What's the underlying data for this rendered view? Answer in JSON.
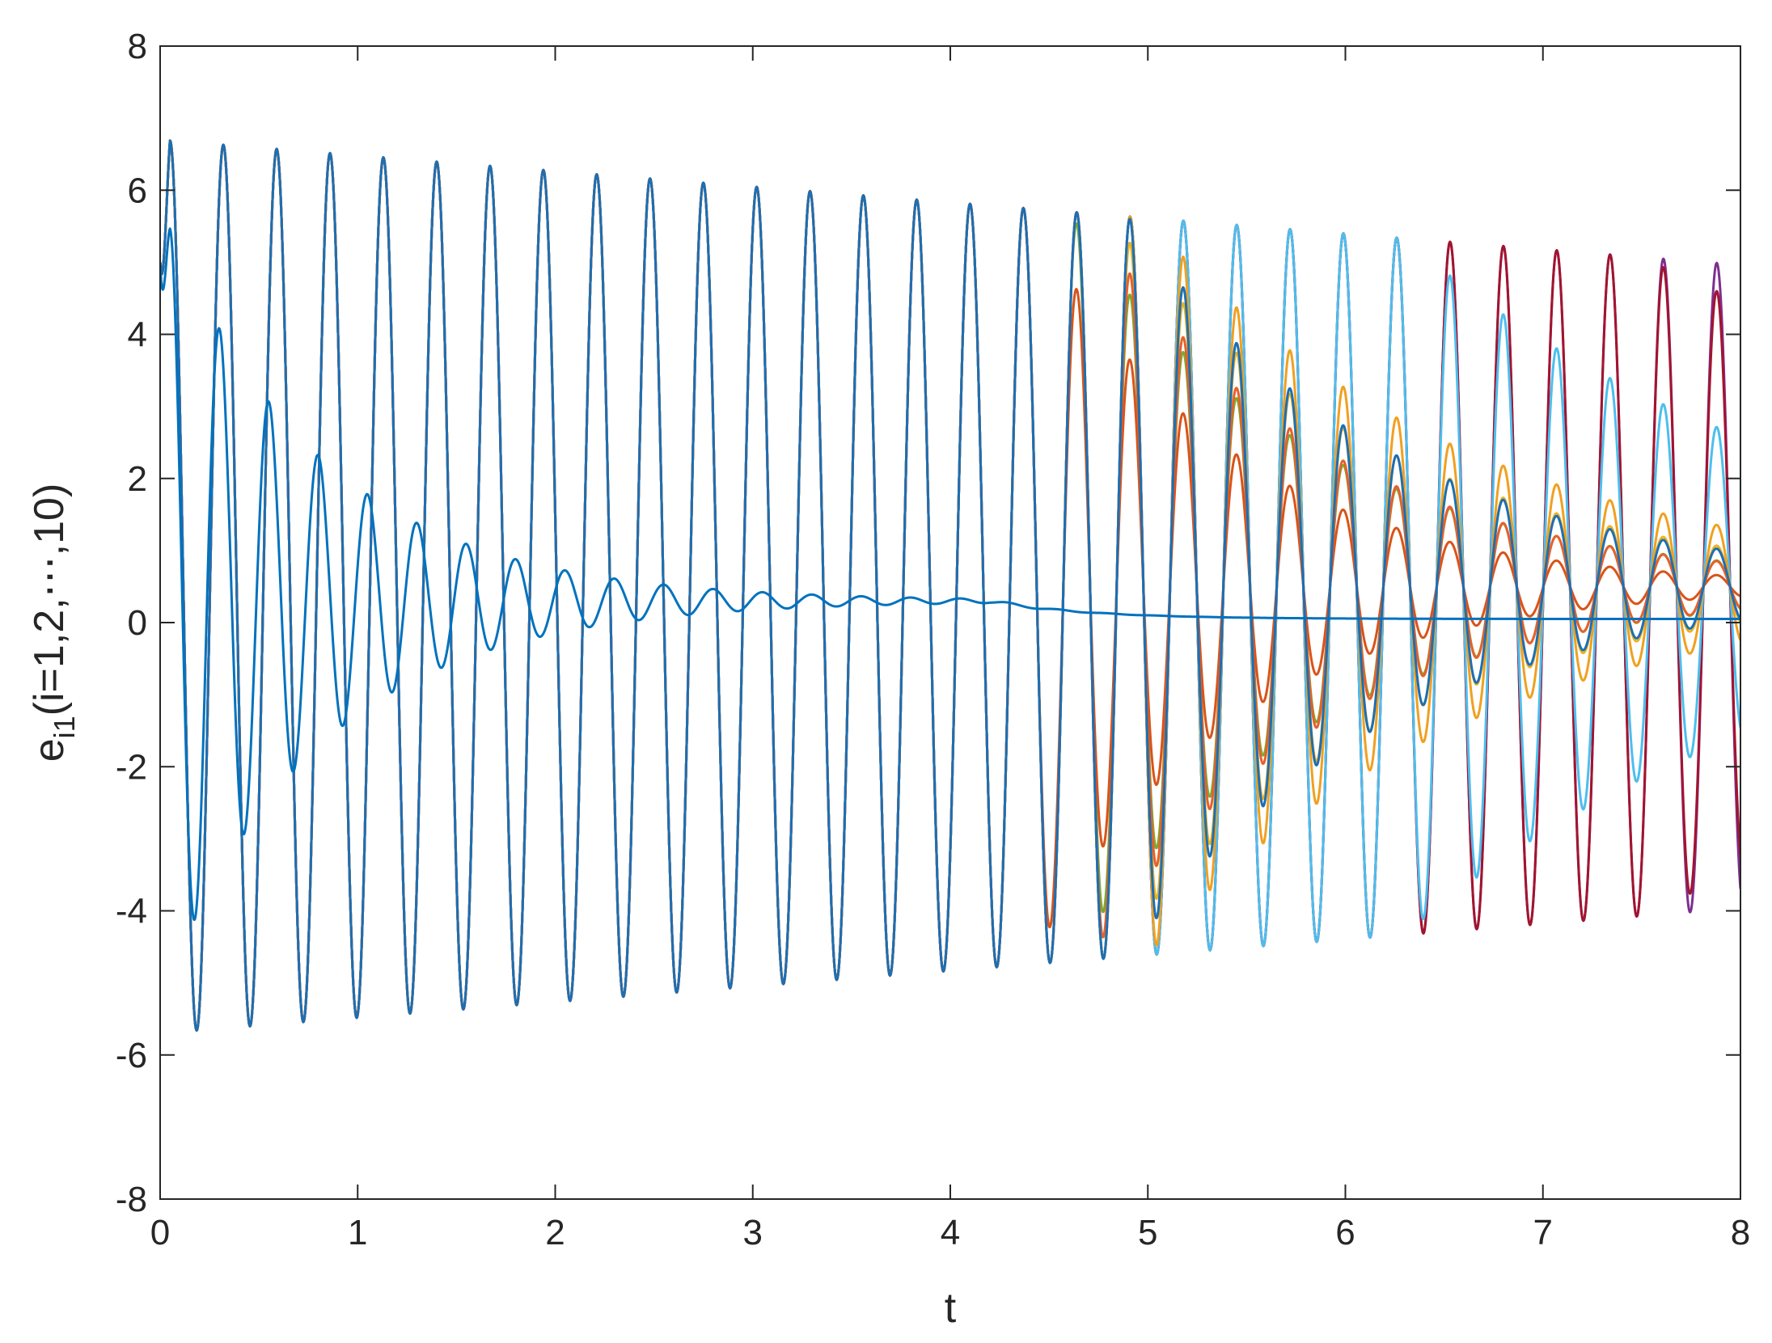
{
  "chart_data": {
    "type": "line",
    "title": "",
    "xlabel": "t",
    "ylabel": {
      "base": "e",
      "subscript": "i1",
      "rest": "(i=1,2,⋯,10)"
    },
    "xlim": [
      0,
      8
    ],
    "ylim": [
      -8,
      8
    ],
    "xticks": [
      0,
      1,
      2,
      3,
      4,
      5,
      6,
      7,
      8
    ],
    "yticks": [
      -8,
      -6,
      -4,
      -2,
      0,
      2,
      4,
      6,
      8
    ],
    "xtick_labels": [
      "0",
      "1",
      "2",
      "3",
      "4",
      "5",
      "6",
      "7",
      "8"
    ],
    "ytick_labels": [
      "-8",
      "-6",
      "-4",
      "-2",
      "0",
      "2",
      "4",
      "6",
      "8"
    ],
    "grid": false,
    "legend": "none",
    "series": [
      {
        "color": "#7E2F8E",
        "amplitude": 6.2,
        "offset": 0.5,
        "period": 0.27,
        "diverge_start": 8.0,
        "decay_after": 0.0
      },
      {
        "color": "#A2142F",
        "amplitude": 6.2,
        "offset": 0.5,
        "period": 0.27,
        "diverge_start": 7.5,
        "decay_after": 0.15
      },
      {
        "color": "#4DBEEE",
        "amplitude": 6.2,
        "offset": 0.5,
        "period": 0.27,
        "diverge_start": 6.3,
        "decay_after": 0.28
      },
      {
        "color": "#77AC30",
        "amplitude": 6.2,
        "offset": 0.5,
        "period": 0.27,
        "diverge_start": 4.6,
        "decay_after": 0.48
      },
      {
        "color": "#EDB120",
        "amplitude": 6.2,
        "offset": 0.5,
        "period": 0.27,
        "diverge_start": 4.8,
        "decay_after": 0.42
      },
      {
        "color": "#F0A020",
        "amplitude": 6.2,
        "offset": 0.5,
        "period": 0.27,
        "diverge_start": 5.0,
        "decay_after": 0.36
      },
      {
        "color": "#D95319",
        "amplitude": 6.2,
        "offset": 0.5,
        "period": 0.27,
        "diverge_start": 4.4,
        "decay_after": 0.6
      },
      {
        "color": "#E8602A",
        "amplitude": 6.2,
        "offset": 0.5,
        "period": 0.27,
        "diverge_start": 4.7,
        "decay_after": 0.5
      },
      {
        "color": "#1B6FB5",
        "amplitude": 6.2,
        "offset": 0.5,
        "period": 0.27,
        "diverge_start": 4.9,
        "decay_after": 0.45
      },
      {
        "color": "#0072BD",
        "amplitude": 5.5,
        "offset": 0.3,
        "period": 0.25,
        "diverge_start": 0.2,
        "decay_rate": 1.25
      }
    ],
    "frame_color": "#262626"
  }
}
